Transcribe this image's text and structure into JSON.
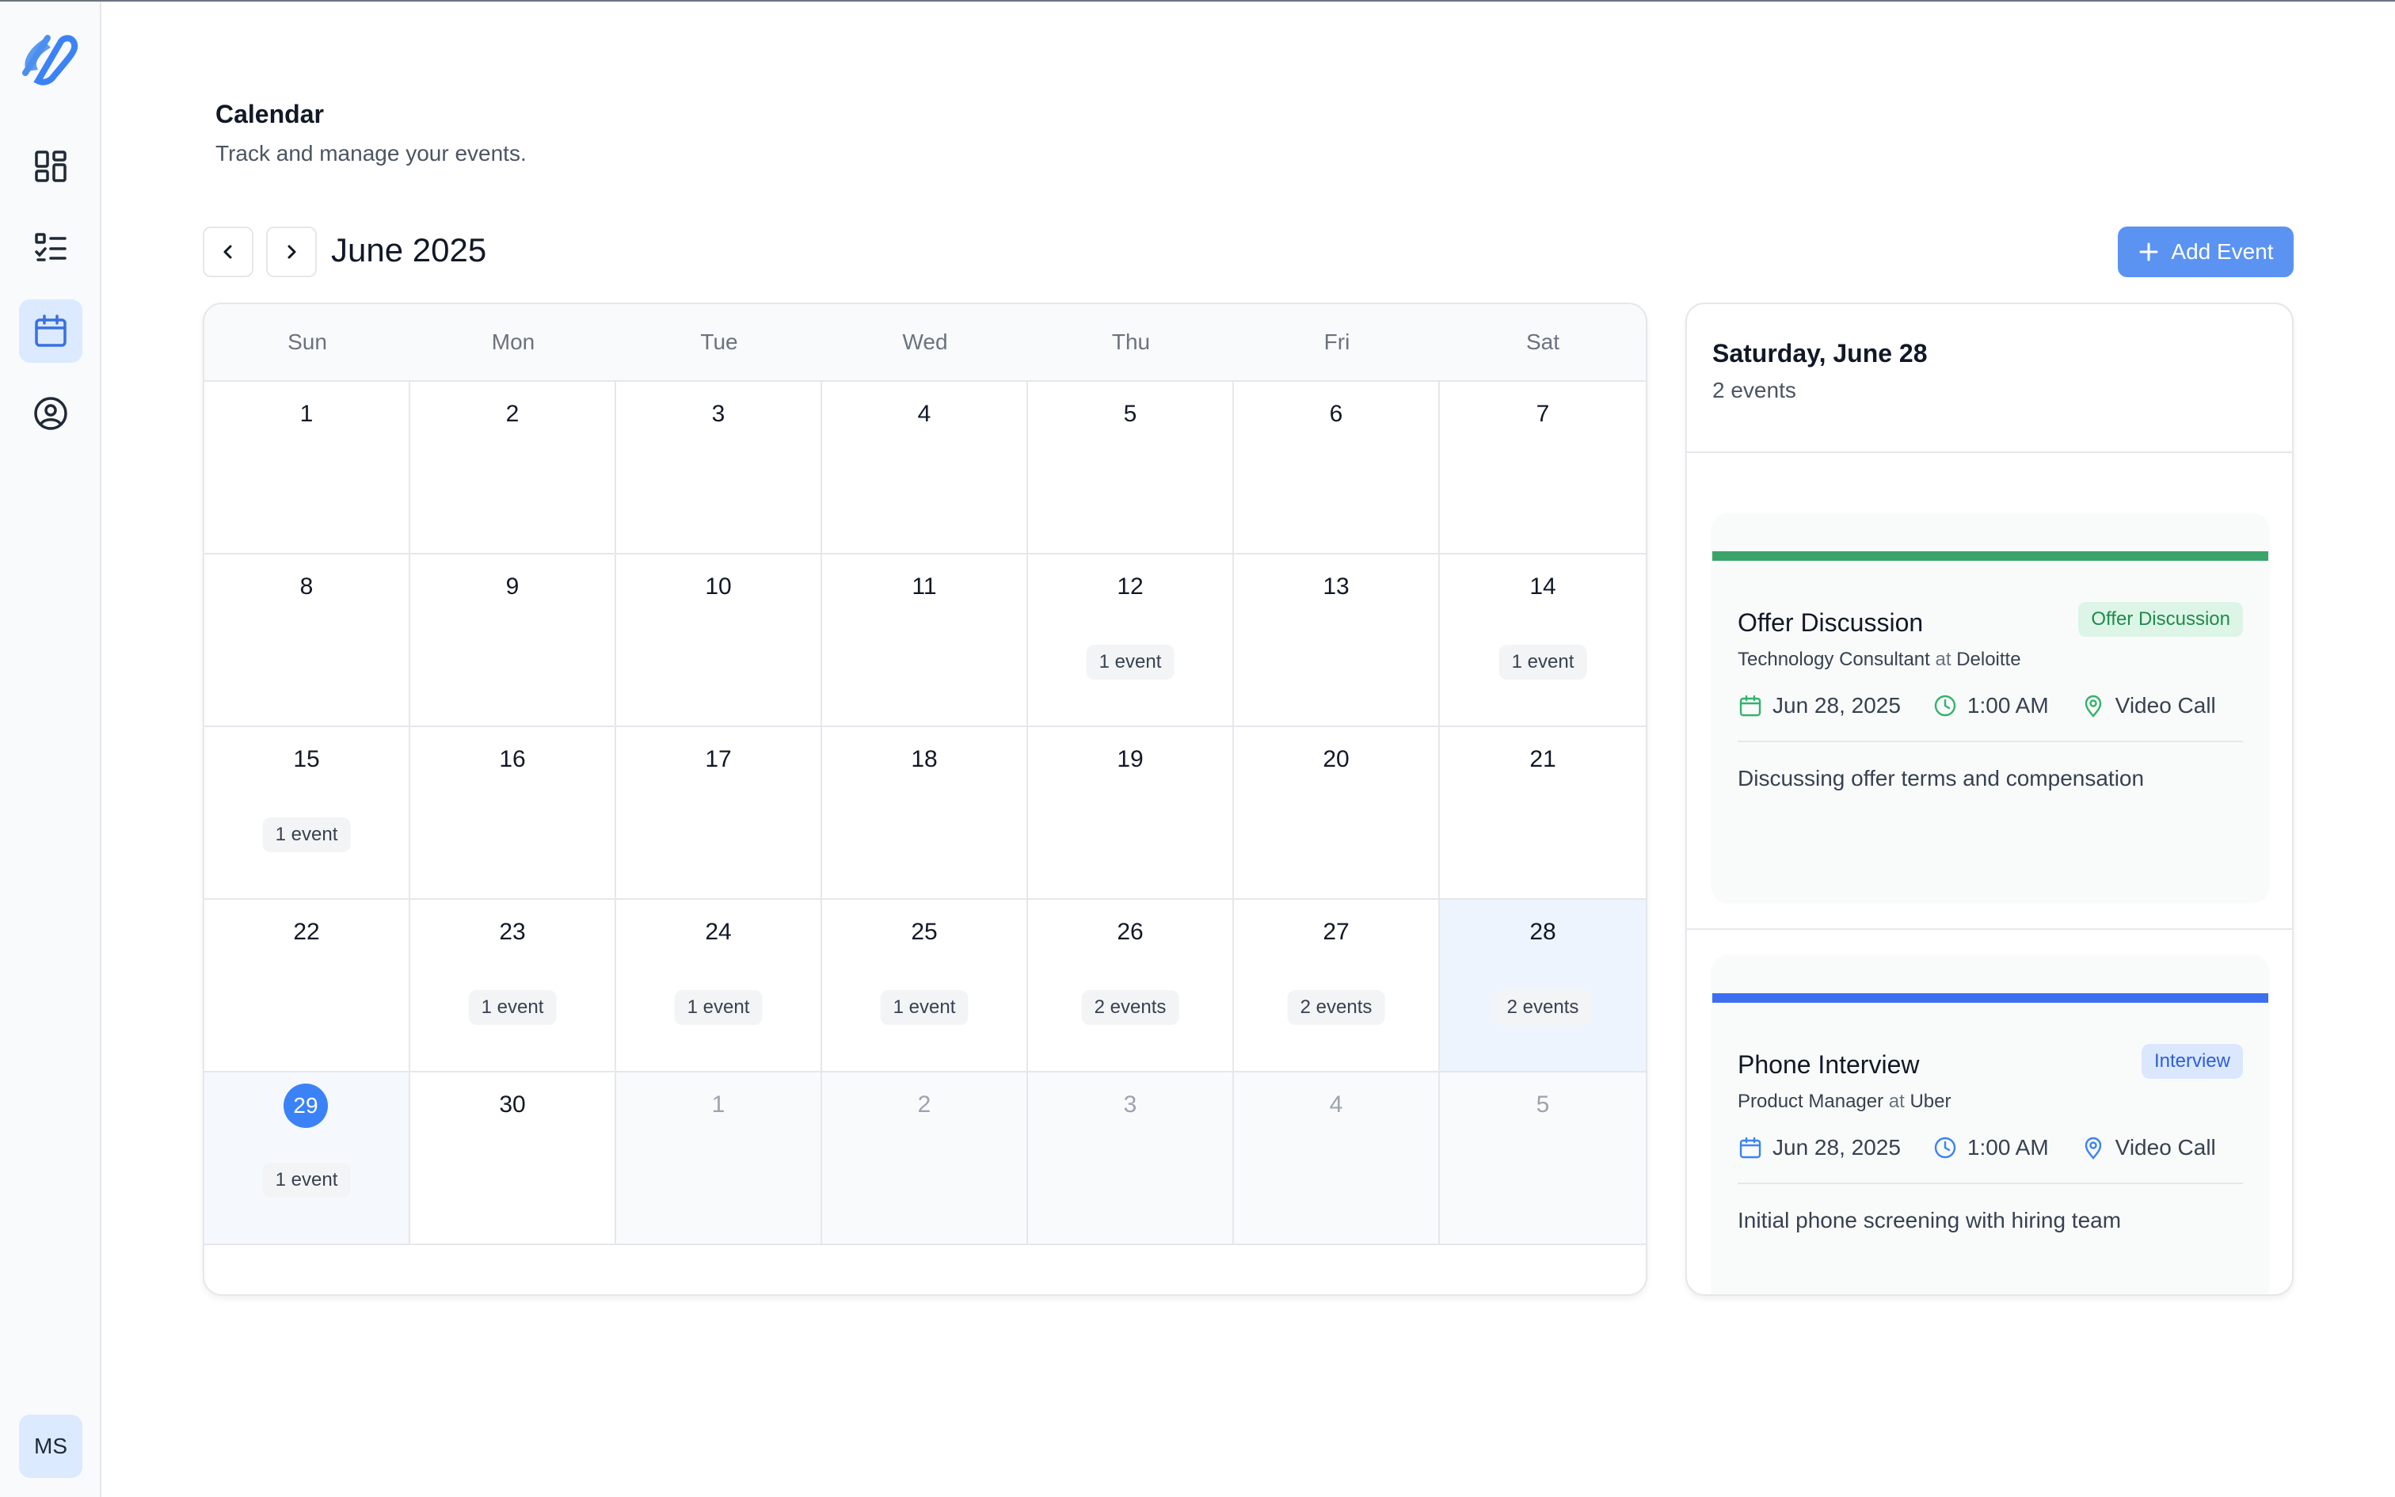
{
  "sidebar": {
    "nav": [
      {
        "icon": "dashboard-icon"
      },
      {
        "icon": "task-list-icon"
      },
      {
        "icon": "calendar-icon"
      },
      {
        "icon": "user-circle-icon"
      }
    ],
    "avatar_initials": "MS"
  },
  "header": {
    "title": "Calendar",
    "subtitle": "Track and manage your events."
  },
  "toolbar": {
    "month_label": "June 2025",
    "add_event_label": "Add Event"
  },
  "calendar": {
    "weekdays": [
      "Sun",
      "Mon",
      "Tue",
      "Wed",
      "Thu",
      "Fri",
      "Sat"
    ],
    "weeks": [
      [
        {
          "d": "1",
          "ev": ""
        },
        {
          "d": "2",
          "ev": ""
        },
        {
          "d": "3",
          "ev": ""
        },
        {
          "d": "4",
          "ev": ""
        },
        {
          "d": "5",
          "ev": ""
        },
        {
          "d": "6",
          "ev": ""
        },
        {
          "d": "7",
          "ev": ""
        }
      ],
      [
        {
          "d": "8",
          "ev": ""
        },
        {
          "d": "9",
          "ev": ""
        },
        {
          "d": "10",
          "ev": ""
        },
        {
          "d": "11",
          "ev": ""
        },
        {
          "d": "12",
          "ev": "1 event"
        },
        {
          "d": "13",
          "ev": ""
        },
        {
          "d": "14",
          "ev": "1 event"
        }
      ],
      [
        {
          "d": "15",
          "ev": "1 event"
        },
        {
          "d": "16",
          "ev": ""
        },
        {
          "d": "17",
          "ev": ""
        },
        {
          "d": "18",
          "ev": ""
        },
        {
          "d": "19",
          "ev": ""
        },
        {
          "d": "20",
          "ev": ""
        },
        {
          "d": "21",
          "ev": ""
        }
      ],
      [
        {
          "d": "22",
          "ev": ""
        },
        {
          "d": "23",
          "ev": "1 event"
        },
        {
          "d": "24",
          "ev": "1 event"
        },
        {
          "d": "25",
          "ev": "1 event"
        },
        {
          "d": "26",
          "ev": "2 events"
        },
        {
          "d": "27",
          "ev": "2 events"
        },
        {
          "d": "28",
          "ev": "2 events",
          "selected": true
        }
      ],
      [
        {
          "d": "29",
          "ev": "1 event",
          "today": true
        },
        {
          "d": "30",
          "ev": ""
        },
        {
          "d": "1",
          "ev": "",
          "other": true
        },
        {
          "d": "2",
          "ev": "",
          "other": true
        },
        {
          "d": "3",
          "ev": "",
          "other": true
        },
        {
          "d": "4",
          "ev": "",
          "other": true
        },
        {
          "d": "5",
          "ev": "",
          "other": true
        }
      ]
    ]
  },
  "panel": {
    "date_title": "Saturday, June 28",
    "count": "2 events",
    "events": [
      {
        "title": "Offer Discussion",
        "tag": "Offer Discussion",
        "role": "Technology Consultant",
        "at": "at",
        "company": "Deloitte",
        "date": "Jun 28, 2025",
        "time": "1:00 AM",
        "location": "Video Call",
        "description": "Discussing offer terms and compensation",
        "accent": "#3aa46b",
        "tag_bg": "#dcf5e6",
        "tag_color": "#1f8a4c",
        "icon_color": "#34b36b"
      },
      {
        "title": "Phone Interview",
        "tag": "Interview",
        "role": "Product Manager",
        "at": "at",
        "company": "Uber",
        "date": "Jun 28, 2025",
        "time": "1:00 AM",
        "location": "Video Call",
        "description": "Initial phone screening with hiring team",
        "accent": "#3b6ff0",
        "tag_bg": "#dbe7fd",
        "tag_color": "#2b5fd9",
        "icon_color": "#3b82f6"
      }
    ]
  },
  "colors": {
    "primary": "#5b93f2",
    "today": "#3b82f6",
    "selected_bg": "#eef4fd"
  }
}
